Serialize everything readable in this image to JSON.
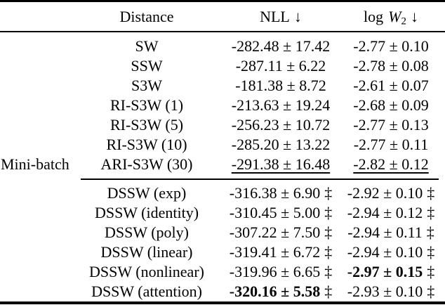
{
  "page": {
    "background_color": "#ffffff",
    "text_color": "#000000"
  },
  "table": {
    "headers": {
      "group": "",
      "distance": "Distance",
      "nll": {
        "label": "NLL",
        "arrow": "↓"
      },
      "logw2": {
        "prefix": "log",
        "symbol": "W",
        "subscript": "2",
        "arrow": "↓"
      }
    },
    "group_label": "Mini-batch",
    "sections": [
      {
        "rows": [
          {
            "group_label": "",
            "distance": "SW",
            "nll": {
              "text": "-282.48 ± 17.42"
            },
            "logw2": {
              "text": "-2.77 ± 0.10"
            }
          },
          {
            "group_label": "",
            "distance": "SSW",
            "nll": {
              "text": "-287.11 ± 6.22"
            },
            "logw2": {
              "text": "-2.78 ± 0.08"
            }
          },
          {
            "group_label": "",
            "distance": "S3W",
            "nll": {
              "text": "-181.38 ± 8.72"
            },
            "logw2": {
              "text": "-2.61 ± 0.07"
            }
          },
          {
            "group_label": "",
            "distance": "RI-S3W (1)",
            "nll": {
              "text": "-213.63 ± 19.24"
            },
            "logw2": {
              "text": "-2.68 ± 0.09"
            }
          },
          {
            "group_label": "",
            "distance": "RI-S3W (5)",
            "nll": {
              "text": "-256.23 ± 10.72"
            },
            "logw2": {
              "text": "-2.77 ± 0.13"
            }
          },
          {
            "group_label": "",
            "distance": "RI-S3W (10)",
            "nll": {
              "text": "-285.20 ± 13.22"
            },
            "logw2": {
              "text": "-2.77 ± 0.11"
            }
          },
          {
            "group_label": "Mini-batch",
            "distance": "ARI-S3W (30)",
            "nll": {
              "text": "-291.38 ± 16.48",
              "underline": true
            },
            "logw2": {
              "text": "-2.82 ± 0.12",
              "underline": true
            }
          }
        ]
      },
      {
        "rows": [
          {
            "group_label": "",
            "distance": "DSSW (exp)",
            "nll": {
              "text": "-316.38 ± 6.90",
              "dagger": "‡"
            },
            "logw2": {
              "text": "-2.92 ± 0.10",
              "dagger": "‡"
            }
          },
          {
            "group_label": "",
            "distance": "DSSW (identity)",
            "nll": {
              "text": "-310.45 ± 5.00",
              "dagger": "‡"
            },
            "logw2": {
              "text": "-2.94 ± 0.12",
              "dagger": "‡"
            }
          },
          {
            "group_label": "",
            "distance": "DSSW (poly)",
            "nll": {
              "text": "-307.22 ± 7.50",
              "dagger": "‡"
            },
            "logw2": {
              "text": "-2.94 ± 0.11",
              "dagger": "‡"
            }
          },
          {
            "group_label": "",
            "distance": "DSSW (linear)",
            "nll": {
              "text": "-319.41 ± 6.72",
              "dagger": "‡"
            },
            "logw2": {
              "text": "-2.94 ± 0.10",
              "dagger": "‡"
            }
          },
          {
            "group_label": "",
            "distance": "DSSW (nonlinear)",
            "nll": {
              "text": "-319.96 ± 6.65",
              "dagger": "‡"
            },
            "logw2": {
              "text": "-2.97 ± 0.15",
              "bold": true,
              "dagger": "‡"
            }
          },
          {
            "group_label": "",
            "distance": "DSSW (attention)",
            "nll": {
              "text": "-320.16 ± 5.58",
              "bold": true,
              "dagger": "‡"
            },
            "logw2": {
              "text": "-2.93 ± 0.10",
              "dagger": "‡"
            }
          }
        ]
      }
    ]
  }
}
